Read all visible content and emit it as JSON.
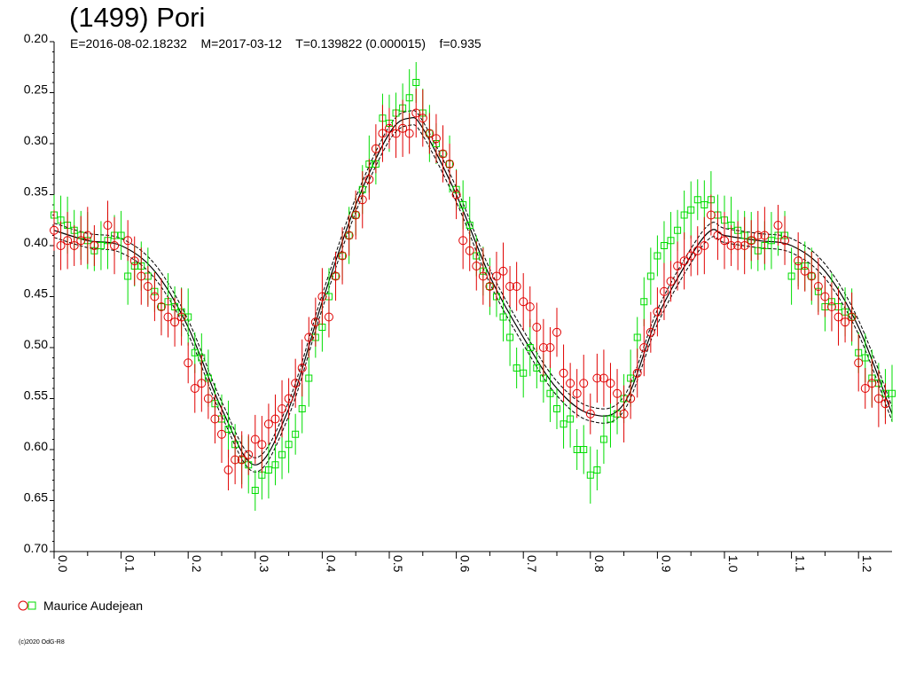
{
  "chart_data": {
    "type": "scatter",
    "title": "(1499) Pori",
    "subtitle": "E=2016-08-02.18232    M=2017-03-12    T=0.139822 (0.000015)    f=0.935",
    "xlim": [
      0.0,
      1.25
    ],
    "ylim": [
      0.2,
      0.7
    ],
    "y_inverted": true,
    "x_ticks": [
      "0.0",
      "0.1",
      "0.2",
      "0.3",
      "0.4",
      "0.5",
      "0.6",
      "0.7",
      "0.8",
      "0.9",
      "1.0",
      "1.1",
      "1.2"
    ],
    "y_ticks": [
      "0.20",
      "0.25",
      "0.30",
      "0.35",
      "0.40",
      "0.45",
      "0.50",
      "0.55",
      "0.60",
      "0.65",
      "0.70"
    ],
    "grid": false,
    "legend": {
      "position": "bottom-left",
      "label": "Maurice Audejean"
    },
    "colors": {
      "series_red": "#e00000",
      "series_green": "#00dd00",
      "fit": "#000000"
    },
    "fit_curve": {
      "x": [
        0.0,
        0.05,
        0.1,
        0.15,
        0.2,
        0.25,
        0.3,
        0.35,
        0.4,
        0.45,
        0.5,
        0.53,
        0.55,
        0.6,
        0.65,
        0.7,
        0.75,
        0.8,
        0.85,
        0.9,
        0.95,
        0.98,
        1.0,
        1.05,
        1.1,
        1.15,
        1.2,
        1.25
      ],
      "y": [
        0.385,
        0.395,
        0.4,
        0.425,
        0.48,
        0.56,
        0.615,
        0.56,
        0.455,
        0.36,
        0.29,
        0.275,
        0.285,
        0.35,
        0.43,
        0.49,
        0.54,
        0.565,
        0.555,
        0.47,
        0.41,
        0.385,
        0.39,
        0.395,
        0.4,
        0.425,
        0.48,
        0.565
      ],
      "band": 0.007
    },
    "series": [
      {
        "marker": "circle",
        "color": "#e00000",
        "x": [
          0.0,
          0.01,
          0.02,
          0.03,
          0.04,
          0.05,
          0.06,
          0.08,
          0.09,
          0.11,
          0.12,
          0.13,
          0.14,
          0.15,
          0.16,
          0.17,
          0.18,
          0.19,
          0.2,
          0.21,
          0.22,
          0.23,
          0.24,
          0.25,
          0.26,
          0.27,
          0.28,
          0.29,
          0.3,
          0.31,
          0.32,
          0.33,
          0.34,
          0.35,
          0.36,
          0.37,
          0.38,
          0.39,
          0.4,
          0.41,
          0.42,
          0.43,
          0.44,
          0.45,
          0.46,
          0.47,
          0.48,
          0.49,
          0.5,
          0.51,
          0.52,
          0.53,
          0.54,
          0.55,
          0.56,
          0.57,
          0.58,
          0.59,
          0.6,
          0.61,
          0.62,
          0.63,
          0.64,
          0.65,
          0.66,
          0.67,
          0.68,
          0.69,
          0.7,
          0.71,
          0.72,
          0.73,
          0.74,
          0.75,
          0.76,
          0.77,
          0.78,
          0.79,
          0.8,
          0.81,
          0.82,
          0.83,
          0.84,
          0.85,
          0.86,
          0.87,
          0.88,
          0.89,
          0.9,
          0.91,
          0.92,
          0.93,
          0.94,
          0.95,
          0.96,
          0.97,
          0.98,
          0.99,
          1.0,
          1.01,
          1.02,
          1.03,
          1.04,
          1.05,
          1.06,
          1.08,
          1.09,
          1.11,
          1.12,
          1.13,
          1.14,
          1.15,
          1.16,
          1.17,
          1.18,
          1.19,
          1.2,
          1.21,
          1.22,
          1.23,
          1.24
        ],
        "y": [
          0.385,
          0.4,
          0.395,
          0.4,
          0.395,
          0.39,
          0.4,
          0.38,
          0.4,
          0.395,
          0.415,
          0.43,
          0.44,
          0.45,
          0.46,
          0.47,
          0.475,
          0.47,
          0.515,
          0.54,
          0.535,
          0.55,
          0.57,
          0.585,
          0.62,
          0.61,
          0.61,
          0.605,
          0.59,
          0.595,
          0.575,
          0.57,
          0.56,
          0.55,
          0.535,
          0.52,
          0.49,
          0.475,
          0.45,
          0.47,
          0.43,
          0.41,
          0.39,
          0.37,
          0.355,
          0.335,
          0.305,
          0.29,
          0.285,
          0.29,
          0.285,
          0.29,
          0.27,
          0.275,
          0.29,
          0.295,
          0.31,
          0.32,
          0.35,
          0.395,
          0.405,
          0.42,
          0.43,
          0.44,
          0.43,
          0.425,
          0.44,
          0.44,
          0.455,
          0.46,
          0.48,
          0.5,
          0.5,
          0.485,
          0.525,
          0.535,
          0.545,
          0.535,
          0.565,
          0.53,
          0.53,
          0.535,
          0.545,
          0.565,
          0.55,
          0.525,
          0.5,
          0.485,
          0.465,
          0.445,
          0.435,
          0.42,
          0.415,
          0.41,
          0.405,
          0.4,
          0.37,
          0.39,
          0.395,
          0.4,
          0.4,
          0.4,
          0.395,
          0.39,
          0.39,
          0.38,
          0.395,
          0.415,
          0.425,
          0.43,
          0.44,
          0.45,
          0.46,
          0.47,
          0.475,
          0.47,
          0.515,
          0.54,
          0.535,
          0.55,
          0.555
        ]
      },
      {
        "marker": "square",
        "color": "#00dd00",
        "x": [
          0.0,
          0.01,
          0.02,
          0.03,
          0.04,
          0.05,
          0.06,
          0.07,
          0.08,
          0.09,
          0.1,
          0.11,
          0.12,
          0.13,
          0.14,
          0.15,
          0.16,
          0.17,
          0.18,
          0.19,
          0.2,
          0.21,
          0.22,
          0.23,
          0.24,
          0.25,
          0.26,
          0.27,
          0.28,
          0.29,
          0.3,
          0.31,
          0.32,
          0.33,
          0.34,
          0.35,
          0.36,
          0.37,
          0.38,
          0.39,
          0.4,
          0.41,
          0.42,
          0.43,
          0.44,
          0.45,
          0.46,
          0.47,
          0.48,
          0.49,
          0.5,
          0.51,
          0.52,
          0.53,
          0.54,
          0.55,
          0.56,
          0.57,
          0.58,
          0.59,
          0.6,
          0.61,
          0.62,
          0.63,
          0.64,
          0.65,
          0.66,
          0.67,
          0.68,
          0.69,
          0.7,
          0.71,
          0.72,
          0.73,
          0.74,
          0.75,
          0.76,
          0.77,
          0.78,
          0.79,
          0.8,
          0.81,
          0.82,
          0.83,
          0.84,
          0.85,
          0.86,
          0.87,
          0.88,
          0.89,
          0.9,
          0.91,
          0.92,
          0.93,
          0.94,
          0.95,
          0.96,
          0.97,
          0.98,
          0.99,
          1.0,
          1.01,
          1.02,
          1.03,
          1.04,
          1.05,
          1.06,
          1.07,
          1.08,
          1.09,
          1.1,
          1.11,
          1.12,
          1.13,
          1.14,
          1.15,
          1.16,
          1.17,
          1.18,
          1.19,
          1.2,
          1.21,
          1.22,
          1.23,
          1.24,
          1.25
        ],
        "y": [
          0.37,
          0.375,
          0.38,
          0.385,
          0.39,
          0.395,
          0.405,
          0.4,
          0.395,
          0.39,
          0.39,
          0.43,
          0.42,
          0.42,
          0.43,
          0.445,
          0.46,
          0.455,
          0.46,
          0.465,
          0.47,
          0.505,
          0.51,
          0.53,
          0.555,
          0.57,
          0.58,
          0.595,
          0.61,
          0.615,
          0.64,
          0.625,
          0.62,
          0.615,
          0.605,
          0.595,
          0.585,
          0.56,
          0.53,
          0.49,
          0.48,
          0.45,
          0.43,
          0.41,
          0.39,
          0.37,
          0.345,
          0.32,
          0.32,
          0.275,
          0.28,
          0.27,
          0.265,
          0.255,
          0.24,
          0.27,
          0.29,
          0.3,
          0.31,
          0.32,
          0.345,
          0.36,
          0.38,
          0.41,
          0.425,
          0.44,
          0.45,
          0.47,
          0.49,
          0.52,
          0.525,
          0.5,
          0.52,
          0.53,
          0.545,
          0.56,
          0.575,
          0.57,
          0.6,
          0.6,
          0.625,
          0.62,
          0.59,
          0.57,
          0.565,
          0.55,
          0.53,
          0.49,
          0.455,
          0.43,
          0.41,
          0.4,
          0.395,
          0.385,
          0.37,
          0.365,
          0.355,
          0.36,
          0.355,
          0.37,
          0.375,
          0.38,
          0.385,
          0.39,
          0.395,
          0.405,
          0.4,
          0.395,
          0.39,
          0.39,
          0.43,
          0.42,
          0.42,
          0.43,
          0.445,
          0.46,
          0.455,
          0.46,
          0.465,
          0.47,
          0.505,
          0.51,
          0.53,
          0.535,
          0.545,
          0.545
        ]
      }
    ]
  },
  "copyright": "(c)2020 OdG-R8"
}
